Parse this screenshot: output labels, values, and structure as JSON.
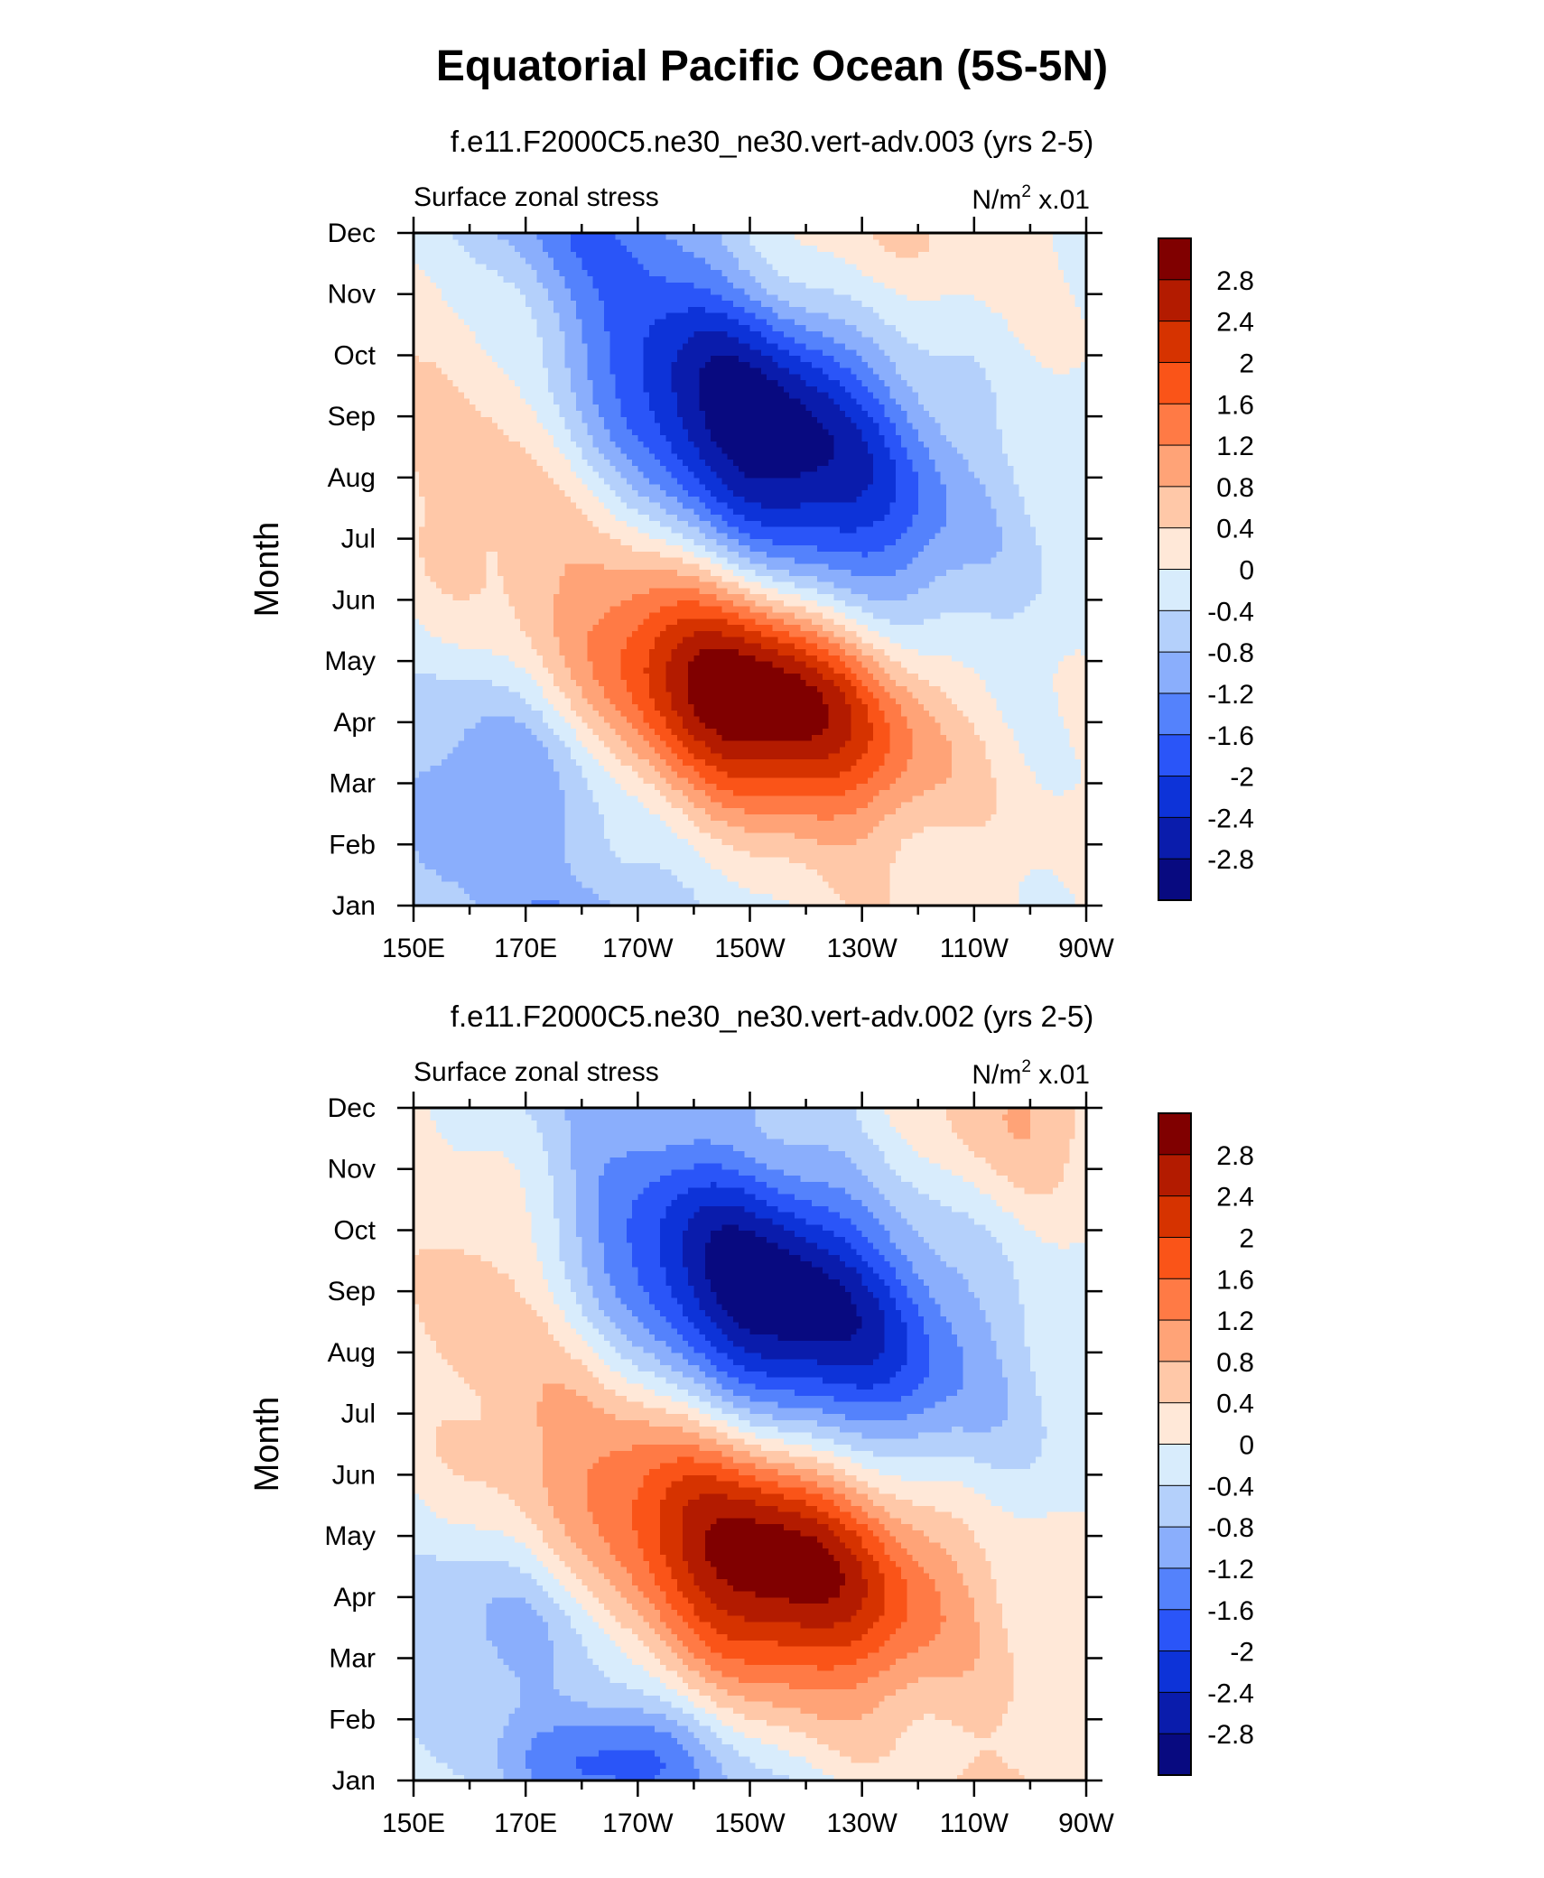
{
  "title": "Equatorial Pacific Ocean (5S-5N)",
  "colorbar": {
    "labels": [
      "2.8",
      "2.4",
      "2",
      "1.6",
      "1.2",
      "0.8",
      "0.4",
      "0",
      "-0.4",
      "-0.8",
      "-1.2",
      "-1.6",
      "-2",
      "-2.4",
      "-2.8"
    ],
    "colors": [
      "#800000",
      "#b31b00",
      "#d63300",
      "#fa5418",
      "#ff7a45",
      "#ffa377",
      "#ffc8a8",
      "#ffe8d8",
      "#d8ecfc",
      "#b4d0fb",
      "#8aaefc",
      "#5482fc",
      "#2a55f8",
      "#0d33d8",
      "#0a1cac",
      "#080a80"
    ]
  },
  "chart_data": [
    {
      "type": "heatmap",
      "subtitle": "f.e11.F2000C5.ne30_ne30.vert-adv.003 (yrs 2-5)",
      "left_label": "Surface zonal stress",
      "right_label": {
        "base": "N/m",
        "exp": "2",
        "suffix": " x.01"
      },
      "ylabel": "Month",
      "x_ticks": [
        "150E",
        "170E",
        "170W",
        "150W",
        "130W",
        "110W",
        "90W"
      ],
      "y_ticks": [
        "Jan",
        "Feb",
        "Mar",
        "Apr",
        "May",
        "Jun",
        "Jul",
        "Aug",
        "Sep",
        "Oct",
        "Nov",
        "Dec"
      ],
      "x_range": [
        150,
        270
      ],
      "units": "N/m2 x.01",
      "features": [
        {
          "lon": 211,
          "month": 3.4,
          "amp": 3.5,
          "slon": 20,
          "smon": 1.25,
          "tilt": -0.022
        },
        {
          "lon": 211,
          "month": 7.8,
          "amp": -3.3,
          "slon": 24,
          "smon": 1.7,
          "tilt": -0.04
        },
        {
          "lon": 224,
          "month": 10.8,
          "amp": 0.6,
          "slon": 18,
          "smon": 0.9,
          "tilt": 0
        },
        {
          "lon": 165,
          "month": 2.0,
          "amp": -1.2,
          "slon": 16,
          "smon": 1.6,
          "tilt": 0
        },
        {
          "lon": 183,
          "month": 11.2,
          "amp": -0.8,
          "slon": 18,
          "smon": 0.8,
          "tilt": 0
        },
        {
          "lon": 178,
          "month": 6.3,
          "amp": 0.5,
          "slon": 18,
          "smon": 2.0,
          "tilt": 0
        },
        {
          "lon": 160,
          "month": 8.5,
          "amp": 0.5,
          "slon": 12,
          "smon": 2.0,
          "tilt": 0
        }
      ]
    },
    {
      "type": "heatmap",
      "subtitle": "f.e11.F2000C5.ne30_ne30.vert-adv.002 (yrs 2-5)",
      "left_label": "Surface zonal stress",
      "right_label": {
        "base": "N/m",
        "exp": "2",
        "suffix": " x.01"
      },
      "ylabel": "Month",
      "x_ticks": [
        "150E",
        "170E",
        "170W",
        "150W",
        "130W",
        "110W",
        "90W"
      ],
      "y_ticks": [
        "Jan",
        "Feb",
        "Mar",
        "Apr",
        "May",
        "Jun",
        "Jul",
        "Aug",
        "Sep",
        "Oct",
        "Nov",
        "Dec"
      ],
      "x_range": [
        150,
        270
      ],
      "units": "N/m2 x.01",
      "features": [
        {
          "lon": 213,
          "month": 3.6,
          "amp": 3.3,
          "slon": 22,
          "smon": 1.45,
          "tilt": -0.018
        },
        {
          "lon": 214,
          "month": 7.9,
          "amp": -3.3,
          "slon": 24,
          "smon": 1.6,
          "tilt": -0.032
        },
        {
          "lon": 258,
          "month": 11.0,
          "amp": 0.8,
          "slon": 12,
          "smon": 1.0,
          "tilt": 0
        },
        {
          "lon": 170,
          "month": 2.6,
          "amp": -1.1,
          "slon": 18,
          "smon": 1.3,
          "tilt": 0
        },
        {
          "lon": 187,
          "month": 0.4,
          "amp": -1.5,
          "slon": 14,
          "smon": 0.6,
          "tilt": 0
        },
        {
          "lon": 200,
          "month": 11.5,
          "amp": -0.5,
          "slon": 22,
          "smon": 0.5,
          "tilt": 0
        },
        {
          "lon": 176,
          "month": 6.2,
          "amp": 0.6,
          "slon": 16,
          "smon": 2.0,
          "tilt": 0
        },
        {
          "lon": 163,
          "month": 8.6,
          "amp": 0.6,
          "slon": 9,
          "smon": 1.2,
          "tilt": 0
        }
      ]
    }
  ]
}
